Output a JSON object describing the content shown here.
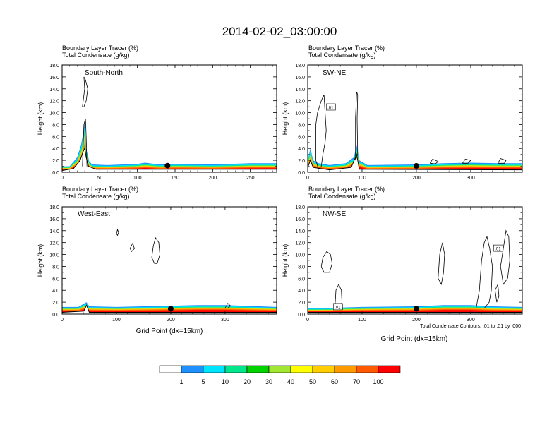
{
  "title": "2014-02-02_03:00:00",
  "colorbar": {
    "levels": [
      "1",
      "5",
      "10",
      "20",
      "30",
      "40",
      "50",
      "60",
      "70",
      "100"
    ],
    "colors": [
      "#ffffff",
      "#1e90ff",
      "#00e5ff",
      "#00e68c",
      "#00d200",
      "#a0e632",
      "#ffff00",
      "#ffcd00",
      "#ff9b00",
      "#ff5a00",
      "#ff0000"
    ]
  },
  "contour_note": "Total Condensate Contours: .01 to .01 by .000",
  "chart_data": [
    {
      "type": "area",
      "panel": "top-left",
      "subtitle1": "Boundary Layer Tracer   (%)",
      "subtitle2": "Total Condensate   (g/kg)",
      "label": "South-North",
      "ylabel": "Height (km)",
      "xlabel": "",
      "xlim": [
        0,
        285
      ],
      "ylim": [
        0,
        18
      ],
      "xticks": [
        0,
        50,
        100,
        150,
        200,
        250
      ],
      "yticks": [
        0,
        2,
        4,
        6,
        8,
        10,
        12,
        14,
        16,
        18
      ],
      "tracer_top_km": [
        [
          0,
          1.0
        ],
        [
          10,
          1.0
        ],
        [
          20,
          2.5
        ],
        [
          25,
          4.5
        ],
        [
          28,
          6.5
        ],
        [
          30,
          8.5
        ],
        [
          32,
          4.0
        ],
        [
          36,
          1.8
        ],
        [
          40,
          1.3
        ],
        [
          60,
          1.2
        ],
        [
          100,
          1.4
        ],
        [
          110,
          1.6
        ],
        [
          130,
          1.3
        ],
        [
          150,
          1.4
        ],
        [
          200,
          1.3
        ],
        [
          250,
          1.5
        ],
        [
          285,
          1.5
        ]
      ],
      "terrain_top_km": [
        [
          0,
          0.3
        ],
        [
          15,
          0.6
        ],
        [
          24,
          2.0
        ],
        [
          28,
          3.5
        ],
        [
          30,
          4.0
        ],
        [
          32,
          2.5
        ],
        [
          35,
          1.0
        ],
        [
          45,
          0.5
        ],
        [
          285,
          0.5
        ]
      ],
      "marker_x": 140,
      "contour_labels": []
    },
    {
      "type": "area",
      "panel": "top-right",
      "subtitle1": "Boundary Layer Tracer   (%)",
      "subtitle2": "Total Condensate   (g/kg)",
      "label": "SW-NE",
      "ylabel": "Height (km)",
      "xlabel": "",
      "xlim": [
        0,
        395
      ],
      "ylim": [
        0,
        18
      ],
      "xticks": [
        0,
        100,
        200,
        300
      ],
      "yticks": [
        0,
        2,
        4,
        6,
        8,
        10,
        12,
        14,
        16,
        18
      ],
      "tracer_top_km": [
        [
          0,
          2.0
        ],
        [
          5,
          4.0
        ],
        [
          10,
          2.0
        ],
        [
          20,
          1.5
        ],
        [
          40,
          1.2
        ],
        [
          70,
          1.5
        ],
        [
          85,
          2.5
        ],
        [
          90,
          4.5
        ],
        [
          95,
          2.0
        ],
        [
          110,
          1.2
        ],
        [
          200,
          1.3
        ],
        [
          250,
          1.5
        ],
        [
          300,
          1.6
        ],
        [
          350,
          1.5
        ],
        [
          395,
          1.5
        ]
      ],
      "terrain_top_km": [
        [
          0,
          0.8
        ],
        [
          5,
          2.0
        ],
        [
          10,
          0.8
        ],
        [
          40,
          0.4
        ],
        [
          80,
          0.8
        ],
        [
          90,
          3.0
        ],
        [
          95,
          0.5
        ],
        [
          395,
          0.4
        ]
      ],
      "marker_x": 200,
      "contour_labels": [
        ".01"
      ]
    },
    {
      "type": "area",
      "panel": "bottom-left",
      "subtitle1": "Boundary Layer Tracer   (%)",
      "subtitle2": "Total Condensate   (g/kg)",
      "label": "West-East",
      "ylabel": "Height (km)",
      "xlabel": "Grid Point (dx=15km)",
      "xlim": [
        0,
        395
      ],
      "ylim": [
        0,
        18
      ],
      "xticks": [
        0,
        100,
        200,
        300
      ],
      "yticks": [
        0,
        2,
        4,
        6,
        8,
        10,
        12,
        14,
        16,
        18
      ],
      "tracer_top_km": [
        [
          0,
          1.2
        ],
        [
          30,
          1.2
        ],
        [
          45,
          2.0
        ],
        [
          50,
          1.3
        ],
        [
          100,
          1.2
        ],
        [
          150,
          1.3
        ],
        [
          200,
          1.4
        ],
        [
          250,
          1.5
        ],
        [
          300,
          1.5
        ],
        [
          395,
          1.2
        ]
      ],
      "terrain_top_km": [
        [
          0,
          0.3
        ],
        [
          40,
          0.5
        ],
        [
          45,
          1.5
        ],
        [
          50,
          0.3
        ],
        [
          395,
          0.3
        ]
      ],
      "marker_x": 200,
      "contour_labels": []
    },
    {
      "type": "area",
      "panel": "bottom-right",
      "subtitle1": "Boundary Layer Tracer   (%)",
      "subtitle2": "Total Condensate   (g/kg)",
      "label": "NW-SE",
      "ylabel": "Height (km)",
      "xlabel": "Grid Point (dx=15km)",
      "xlim": [
        0,
        395
      ],
      "ylim": [
        0,
        18
      ],
      "xticks": [
        0,
        100,
        200,
        300
      ],
      "yticks": [
        0,
        2,
        4,
        6,
        8,
        10,
        12,
        14,
        16,
        18
      ],
      "tracer_top_km": [
        [
          0,
          1.0
        ],
        [
          20,
          1.0
        ],
        [
          40,
          1.0
        ],
        [
          60,
          1.1
        ],
        [
          100,
          1.2
        ],
        [
          200,
          1.3
        ],
        [
          250,
          1.5
        ],
        [
          300,
          1.5
        ],
        [
          340,
          1.3
        ],
        [
          395,
          1.2
        ]
      ],
      "terrain_top_km": [
        [
          0,
          0.3
        ],
        [
          395,
          0.3
        ]
      ],
      "marker_x": 200,
      "contour_labels": [
        ".01",
        ".01"
      ]
    }
  ]
}
